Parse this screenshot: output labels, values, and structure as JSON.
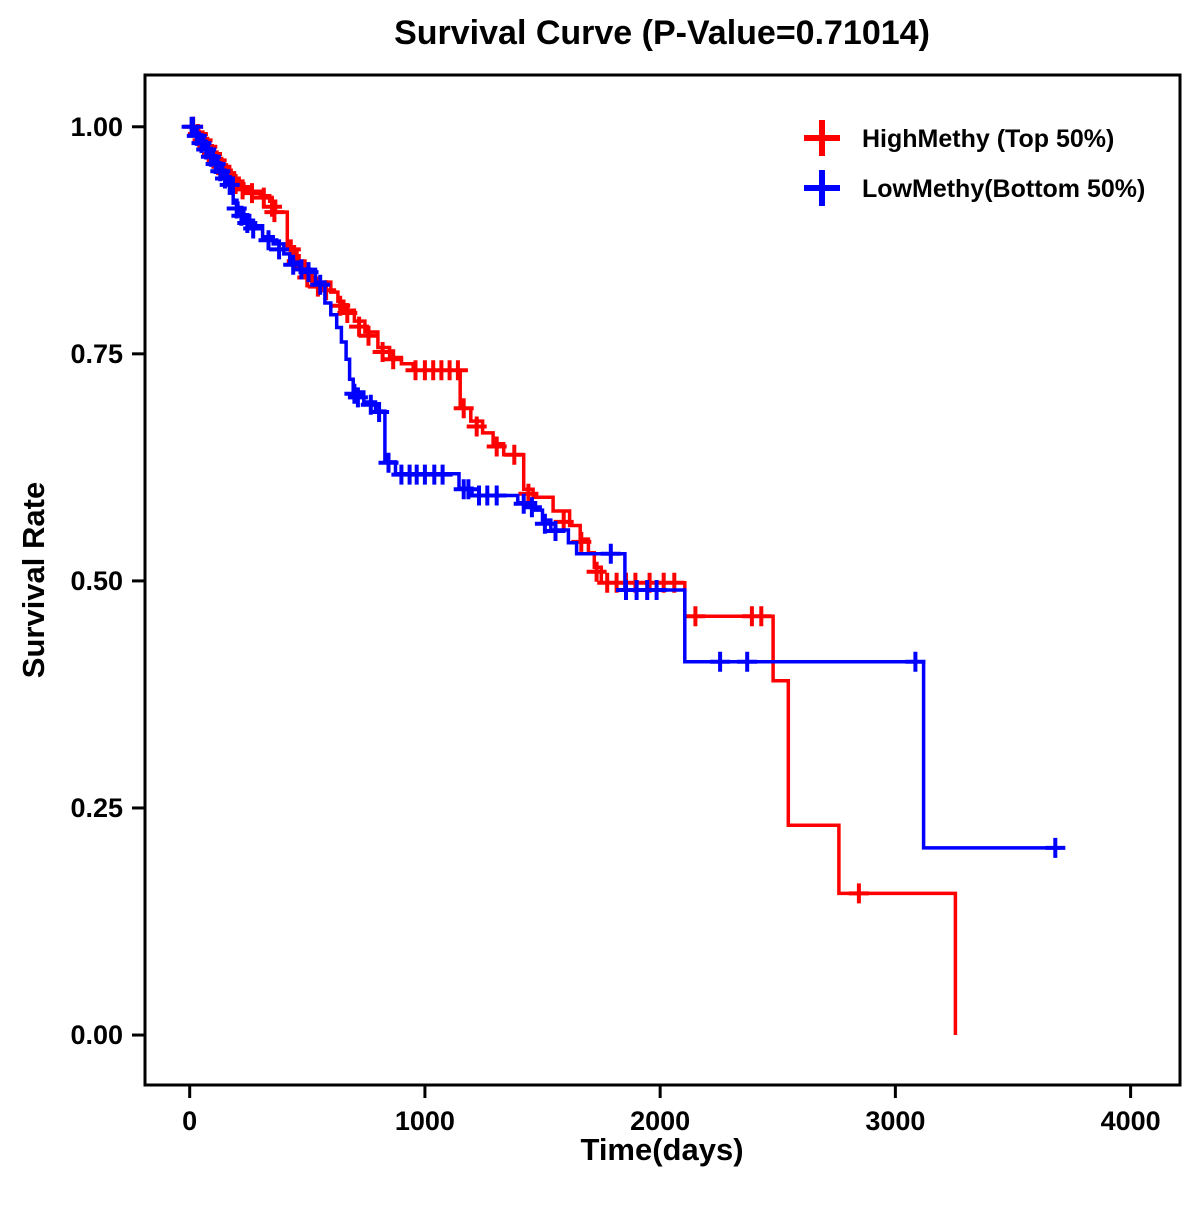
{
  "title": "Survival Curve (P-Value=0.71014)",
  "axes": {
    "x": {
      "label": "Time(days)",
      "tick_values": [
        0,
        1000,
        2000,
        3000,
        4000
      ],
      "tick_labels": [
        "0",
        "1000",
        "2000",
        "3000",
        "4000"
      ]
    },
    "y": {
      "label": "Survival Rate",
      "tick_values": [
        0.0,
        0.25,
        0.5,
        0.75,
        1.0
      ],
      "tick_labels": [
        "0.00",
        "0.25",
        "0.50",
        "0.75",
        "1.00"
      ]
    }
  },
  "chart_data": {
    "type": "line",
    "subtype": "kaplan-meier-step",
    "title": "Survival Curve (P-Value=0.71014)",
    "xlabel": "Time(days)",
    "ylabel": "Survival Rate",
    "xlim": [
      -190,
      4210
    ],
    "ylim": [
      -0.055,
      1.057
    ],
    "grid": false,
    "legend_position": "top-right",
    "series": [
      {
        "name": "HighMethy (Top 50%)",
        "color": "#FF0000",
        "steps": [
          [
            0,
            1.0
          ],
          [
            20,
            0.995
          ],
          [
            40,
            0.988
          ],
          [
            60,
            0.981
          ],
          [
            80,
            0.974
          ],
          [
            100,
            0.967
          ],
          [
            120,
            0.96
          ],
          [
            140,
            0.953
          ],
          [
            160,
            0.946
          ],
          [
            185,
            0.94
          ],
          [
            210,
            0.934
          ],
          [
            250,
            0.929
          ],
          [
            300,
            0.924
          ],
          [
            340,
            0.918
          ],
          [
            365,
            0.906
          ],
          [
            415,
            0.868
          ],
          [
            445,
            0.858
          ],
          [
            465,
            0.848
          ],
          [
            490,
            0.838
          ],
          [
            520,
            0.829
          ],
          [
            600,
            0.818
          ],
          [
            630,
            0.808
          ],
          [
            655,
            0.798
          ],
          [
            700,
            0.786
          ],
          [
            745,
            0.774
          ],
          [
            800,
            0.757
          ],
          [
            850,
            0.746
          ],
          [
            900,
            0.739
          ],
          [
            950,
            0.732
          ],
          [
            1150,
            0.69
          ],
          [
            1195,
            0.676
          ],
          [
            1245,
            0.663
          ],
          [
            1290,
            0.651
          ],
          [
            1335,
            0.639
          ],
          [
            1420,
            0.601
          ],
          [
            1460,
            0.592
          ],
          [
            1545,
            0.577
          ],
          [
            1615,
            0.561
          ],
          [
            1660,
            0.546
          ],
          [
            1695,
            0.531
          ],
          [
            1720,
            0.515
          ],
          [
            1750,
            0.498
          ],
          [
            2105,
            0.461
          ],
          [
            2480,
            0.39
          ],
          [
            2545,
            0.231
          ],
          [
            2760,
            0.156
          ],
          [
            3255,
            0.0
          ]
        ],
        "censors": [
          [
            15,
            1.0
          ],
          [
            35,
            0.992
          ],
          [
            55,
            0.985
          ],
          [
            75,
            0.978
          ],
          [
            95,
            0.97
          ],
          [
            115,
            0.963
          ],
          [
            135,
            0.956
          ],
          [
            155,
            0.949
          ],
          [
            175,
            0.943
          ],
          [
            195,
            0.937
          ],
          [
            225,
            0.931
          ],
          [
            265,
            0.927
          ],
          [
            315,
            0.922
          ],
          [
            350,
            0.912
          ],
          [
            360,
            0.906
          ],
          [
            430,
            0.865
          ],
          [
            455,
            0.852
          ],
          [
            500,
            0.834
          ],
          [
            545,
            0.824
          ],
          [
            580,
            0.82
          ],
          [
            640,
            0.803
          ],
          [
            670,
            0.795
          ],
          [
            720,
            0.78
          ],
          [
            760,
            0.77
          ],
          [
            820,
            0.752
          ],
          [
            865,
            0.744
          ],
          [
            960,
            0.732
          ],
          [
            1000,
            0.732
          ],
          [
            1035,
            0.732
          ],
          [
            1070,
            0.732
          ],
          [
            1105,
            0.732
          ],
          [
            1140,
            0.732
          ],
          [
            1165,
            0.69
          ],
          [
            1220,
            0.67
          ],
          [
            1305,
            0.648
          ],
          [
            1380,
            0.639
          ],
          [
            1440,
            0.596
          ],
          [
            1590,
            0.565
          ],
          [
            1665,
            0.543
          ],
          [
            1730,
            0.51
          ],
          [
            1775,
            0.498
          ],
          [
            1815,
            0.498
          ],
          [
            1855,
            0.498
          ],
          [
            1895,
            0.498
          ],
          [
            1955,
            0.498
          ],
          [
            2015,
            0.498
          ],
          [
            2060,
            0.498
          ],
          [
            2150,
            0.461
          ],
          [
            2390,
            0.461
          ],
          [
            2430,
            0.461
          ],
          [
            2845,
            0.156
          ]
        ]
      },
      {
        "name": "LowMethy(Bottom 50%)",
        "color": "#0000FF",
        "steps": [
          [
            0,
            1.0
          ],
          [
            20,
            0.993
          ],
          [
            40,
            0.986
          ],
          [
            60,
            0.979
          ],
          [
            80,
            0.971
          ],
          [
            100,
            0.963
          ],
          [
            120,
            0.955
          ],
          [
            140,
            0.947
          ],
          [
            160,
            0.939
          ],
          [
            185,
            0.916
          ],
          [
            205,
            0.906
          ],
          [
            230,
            0.898
          ],
          [
            255,
            0.891
          ],
          [
            310,
            0.879
          ],
          [
            355,
            0.871
          ],
          [
            400,
            0.86
          ],
          [
            425,
            0.851
          ],
          [
            470,
            0.843
          ],
          [
            535,
            0.829
          ],
          [
            575,
            0.806
          ],
          [
            600,
            0.793
          ],
          [
            625,
            0.779
          ],
          [
            645,
            0.763
          ],
          [
            665,
            0.744
          ],
          [
            680,
            0.722
          ],
          [
            695,
            0.708
          ],
          [
            740,
            0.697
          ],
          [
            790,
            0.687
          ],
          [
            830,
            0.631
          ],
          [
            875,
            0.618
          ],
          [
            1145,
            0.602
          ],
          [
            1200,
            0.594
          ],
          [
            1395,
            0.586
          ],
          [
            1470,
            0.578
          ],
          [
            1500,
            0.567
          ],
          [
            1535,
            0.556
          ],
          [
            1610,
            0.542
          ],
          [
            1645,
            0.53
          ],
          [
            1850,
            0.49
          ],
          [
            2105,
            0.411
          ],
          [
            3120,
            0.206
          ],
          [
            3700,
            0.206
          ]
        ],
        "censors": [
          [
            8,
            1.0
          ],
          [
            14,
            1.0
          ],
          [
            30,
            0.99
          ],
          [
            50,
            0.982
          ],
          [
            70,
            0.975
          ],
          [
            90,
            0.967
          ],
          [
            110,
            0.959
          ],
          [
            130,
            0.951
          ],
          [
            150,
            0.943
          ],
          [
            170,
            0.936
          ],
          [
            200,
            0.91
          ],
          [
            220,
            0.902
          ],
          [
            245,
            0.894
          ],
          [
            270,
            0.888
          ],
          [
            335,
            0.875
          ],
          [
            380,
            0.865
          ],
          [
            440,
            0.848
          ],
          [
            475,
            0.843
          ],
          [
            505,
            0.84
          ],
          [
            555,
            0.826
          ],
          [
            700,
            0.706
          ],
          [
            715,
            0.702
          ],
          [
            770,
            0.694
          ],
          [
            805,
            0.686
          ],
          [
            845,
            0.63
          ],
          [
            900,
            0.617
          ],
          [
            935,
            0.617
          ],
          [
            965,
            0.617
          ],
          [
            1000,
            0.617
          ],
          [
            1040,
            0.617
          ],
          [
            1075,
            0.617
          ],
          [
            1165,
            0.601
          ],
          [
            1185,
            0.601
          ],
          [
            1230,
            0.594
          ],
          [
            1265,
            0.594
          ],
          [
            1305,
            0.594
          ],
          [
            1420,
            0.585
          ],
          [
            1455,
            0.581
          ],
          [
            1510,
            0.563
          ],
          [
            1555,
            0.555
          ],
          [
            1790,
            0.53
          ],
          [
            1855,
            0.49
          ],
          [
            1900,
            0.49
          ],
          [
            1945,
            0.49
          ],
          [
            1985,
            0.49
          ],
          [
            2255,
            0.411
          ],
          [
            2370,
            0.411
          ],
          [
            3085,
            0.411
          ],
          [
            3680,
            0.206
          ]
        ]
      }
    ]
  }
}
